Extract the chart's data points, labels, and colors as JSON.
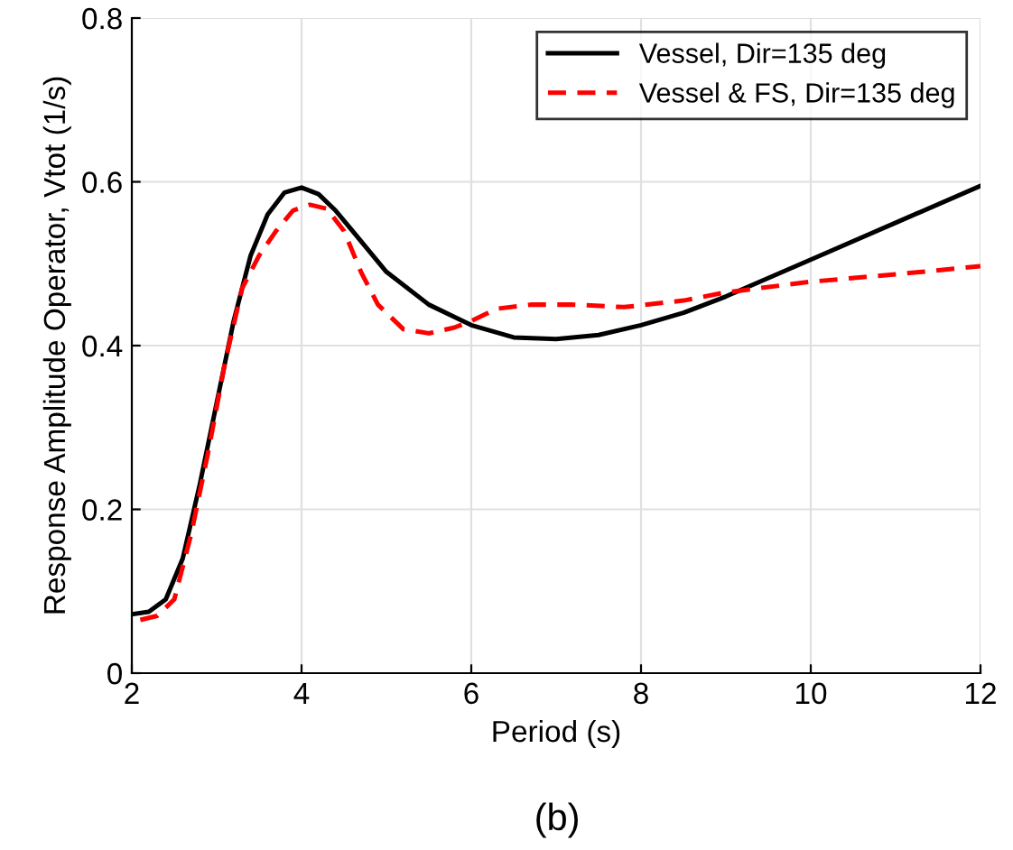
{
  "chart_data": {
    "type": "line",
    "xlabel": "Period (s)",
    "ylabel": "Response Amplitude Operator, Vtot (1/s)",
    "annotations": [
      "(b)"
    ],
    "xlim": [
      2,
      12
    ],
    "ylim": [
      0,
      0.8
    ],
    "xticks": [
      2,
      4,
      6,
      8,
      10,
      12
    ],
    "yticks": [
      0,
      0.2,
      0.4,
      0.6,
      0.8
    ],
    "grid": true,
    "legend": "top right",
    "series": [
      {
        "name": "Vessel, Dir=135 deg",
        "color": "#000000",
        "line_style": "solid",
        "x": [
          2,
          2.2,
          2.4,
          2.6,
          2.8,
          3.0,
          3.2,
          3.4,
          3.6,
          3.8,
          4.0,
          4.2,
          4.4,
          4.6,
          4.8,
          5.0,
          5.5,
          6.0,
          6.5,
          7.0,
          7.5,
          8.0,
          8.5,
          9,
          10,
          11,
          12
        ],
        "values": [
          0.072,
          0.075,
          0.09,
          0.14,
          0.23,
          0.33,
          0.43,
          0.51,
          0.56,
          0.587,
          0.593,
          0.585,
          0.565,
          0.54,
          0.515,
          0.49,
          0.45,
          0.425,
          0.41,
          0.408,
          0.413,
          0.425,
          0.44,
          0.46,
          0.505,
          0.55,
          0.595
        ]
      },
      {
        "name": "Vessel & FS, Dir=135 deg",
        "color": "#ff0000",
        "line_style": "dashed",
        "x": [
          2.1,
          2.3,
          2.5,
          2.7,
          2.9,
          3.1,
          3.3,
          3.5,
          3.7,
          3.9,
          4.1,
          4.3,
          4.5,
          4.7,
          4.9,
          5.2,
          5.5,
          5.8,
          6.0,
          6.3,
          6.7,
          7.2,
          7.8,
          8.5,
          9,
          10,
          11,
          12
        ],
        "values": [
          0.065,
          0.07,
          0.09,
          0.17,
          0.27,
          0.38,
          0.47,
          0.51,
          0.54,
          0.565,
          0.572,
          0.567,
          0.54,
          0.49,
          0.45,
          0.42,
          0.415,
          0.422,
          0.43,
          0.445,
          0.45,
          0.45,
          0.447,
          0.455,
          0.465,
          0.478,
          0.487,
          0.497
        ]
      }
    ]
  }
}
